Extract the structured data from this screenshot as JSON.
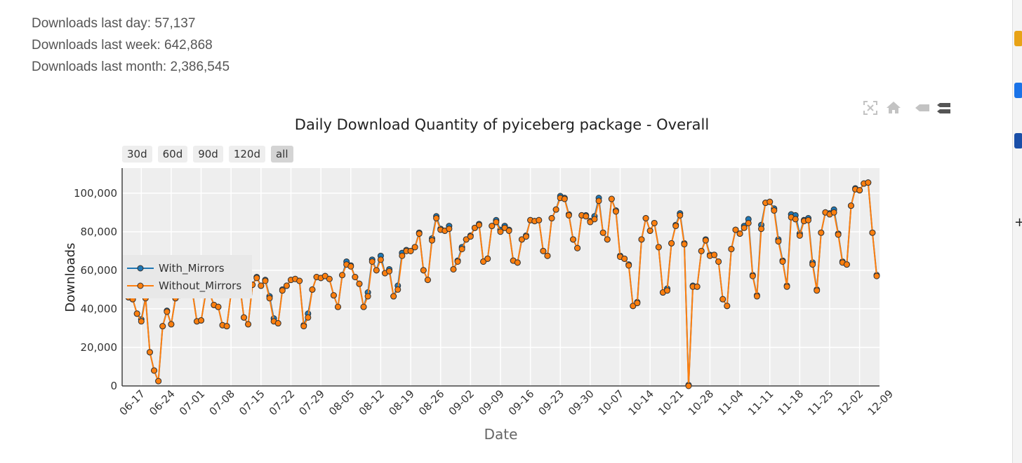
{
  "stats": {
    "last_day": "Downloads last day: 57,137",
    "last_week": "Downloads last week: 642,868",
    "last_month": "Downloads last month: 2,386,545"
  },
  "range_buttons": [
    {
      "label": "30d",
      "active": false
    },
    {
      "label": "60d",
      "active": false
    },
    {
      "label": "90d",
      "active": false
    },
    {
      "label": "120d",
      "active": false
    },
    {
      "label": "all",
      "active": true
    }
  ],
  "modebar_icons": [
    "autoscale-icon",
    "home-icon",
    "hover-closest-icon",
    "hover-compare-icon"
  ],
  "colors": {
    "with_mirrors": "#1f77b4",
    "without_mirrors": "#ff7f0e",
    "plot_bg": "#eeeeee",
    "grid": "#ffffff"
  },
  "chart_data": {
    "type": "line",
    "title": "Daily Download Quantity of pyiceberg package - Overall",
    "xlabel": "Date",
    "ylabel": "Downloads",
    "ylim": [
      0,
      113000
    ],
    "yticks": [
      0,
      20000,
      40000,
      60000,
      80000,
      100000
    ],
    "ytick_labels": [
      "0",
      "20,000",
      "40,000",
      "60,000",
      "80,000",
      "100,000"
    ],
    "xticks": [
      "06-17",
      "06-24",
      "07-01",
      "07-08",
      "07-15",
      "07-22",
      "07-29",
      "08-05",
      "08-12",
      "08-19",
      "08-26",
      "09-02",
      "09-09",
      "09-16",
      "09-23",
      "09-30",
      "10-07",
      "10-14",
      "10-21",
      "10-28",
      "11-04",
      "11-11",
      "11-18",
      "11-25",
      "12-02",
      "12-09"
    ],
    "grid": true,
    "legend_position": "top-left",
    "x_start": "06-14",
    "x_end": "12-09",
    "series": [
      {
        "name": "With_Mirrors",
        "values": [
          46000,
          45000,
          37500,
          34500,
          46000,
          17500,
          8000,
          2500,
          31000,
          39000,
          32000,
          45500,
          47000,
          48000,
          49000,
          48500,
          33500,
          34000,
          47000,
          48000,
          42000,
          41000,
          31500,
          31000,
          48000,
          50000,
          53000,
          35500,
          32000,
          52500,
          56500,
          52000,
          55000,
          46500,
          35000,
          32500,
          50000,
          52000,
          55000,
          55500,
          54500,
          31500,
          37500,
          50000,
          56500,
          56000,
          57000,
          55500,
          47000,
          41000,
          57500,
          64500,
          62500,
          56500,
          53000,
          41000,
          48500,
          65500,
          60000,
          67500,
          58500,
          60500,
          46500,
          52000,
          69000,
          70500,
          70000,
          72000,
          79500,
          60000,
          55000,
          76500,
          88000,
          81500,
          80500,
          83000,
          60500,
          65000,
          72000,
          76000,
          78000,
          82000,
          84000,
          64500,
          66000,
          83000,
          86000,
          81000,
          83000,
          81000,
          65000,
          64000,
          76000,
          78000,
          86000,
          85500,
          86000,
          70000,
          67500,
          87000,
          91500,
          98500,
          97500,
          89000,
          76000,
          71500,
          88500,
          88500,
          85500,
          88000,
          97500,
          79500,
          76000,
          97000,
          91000,
          67500,
          66000,
          63000,
          41500,
          43500,
          76000,
          87000,
          80500,
          84500,
          72000,
          48500,
          50500,
          74000,
          83500,
          89500,
          74000,
          500,
          52000,
          51500,
          70000,
          76000,
          68000,
          68000,
          64500,
          45000,
          41500,
          71000,
          81000,
          79000,
          83000,
          86500,
          57500,
          47000,
          83500,
          95000,
          95500,
          92000,
          76000,
          65000,
          52000,
          89000,
          88500,
          79000,
          86000,
          87000,
          64000,
          50000,
          79500,
          90000,
          89500,
          91500,
          79000,
          64500,
          63000,
          93500,
          102500,
          101500,
          105000,
          105500,
          79500,
          57500
        ]
      },
      {
        "name": "Without_Mirrors",
        "values": [
          46000,
          45000,
          37500,
          33500,
          45500,
          17500,
          8000,
          2500,
          31000,
          38500,
          32000,
          45500,
          47000,
          48000,
          49000,
          48000,
          33500,
          34000,
          47000,
          48000,
          42000,
          41000,
          31500,
          31000,
          48000,
          50000,
          52500,
          35500,
          32000,
          52500,
          56000,
          52000,
          54500,
          45500,
          33500,
          32500,
          49500,
          52000,
          55000,
          55500,
          54500,
          31000,
          35500,
          50000,
          56500,
          56000,
          57000,
          55500,
          47000,
          41000,
          57500,
          63000,
          62000,
          56500,
          53000,
          41000,
          46500,
          64500,
          60000,
          65500,
          58500,
          59500,
          46500,
          50000,
          67500,
          70000,
          70000,
          72000,
          79000,
          60000,
          55000,
          75500,
          87000,
          81000,
          80500,
          81500,
          60500,
          64500,
          71000,
          76000,
          77500,
          82000,
          83500,
          64500,
          66000,
          83000,
          85000,
          80000,
          82000,
          80500,
          65000,
          64000,
          76000,
          77500,
          86000,
          85500,
          86000,
          70000,
          67500,
          87000,
          91500,
          97500,
          97000,
          88500,
          76000,
          71500,
          88500,
          88000,
          85000,
          86500,
          96000,
          79500,
          76000,
          97000,
          90500,
          67000,
          66000,
          62500,
          41500,
          43000,
          76000,
          87000,
          80500,
          84500,
          72000,
          48500,
          49500,
          74000,
          83000,
          88500,
          73500,
          0,
          51500,
          51500,
          70000,
          75500,
          67500,
          68000,
          64500,
          45000,
          41500,
          71000,
          81000,
          79000,
          82000,
          84500,
          57000,
          46500,
          81500,
          95000,
          95500,
          91000,
          75000,
          64500,
          51500,
          87500,
          86500,
          78000,
          85500,
          86000,
          63000,
          49500,
          79500,
          90000,
          89000,
          90000,
          78500,
          64000,
          63000,
          93500,
          102000,
          101500,
          105000,
          105500,
          79500,
          57000
        ]
      }
    ]
  }
}
